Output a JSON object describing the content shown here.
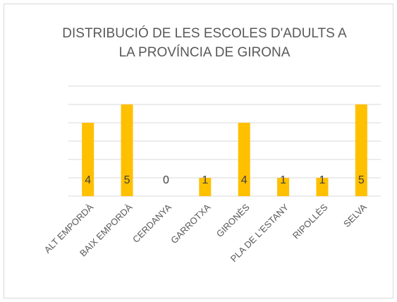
{
  "chart_data": {
    "type": "bar",
    "title": [
      "DISTRIBUCIÓ DE LES ESCOLES D'ADULTS A",
      "LA PROVÍNCIA DE GIRONA"
    ],
    "categories": [
      "ALT EMPORDÀ",
      "BAIX EMPORDÀ",
      "CERDANYA",
      "GARROTXA",
      "GIRONÈS",
      "PLA DE L'ESTANY",
      "RIPOLLÈS",
      "SELVA"
    ],
    "values": [
      4,
      5,
      0,
      1,
      4,
      1,
      1,
      5
    ],
    "color": "#ffc000",
    "ylim": [
      0,
      6
    ],
    "yticks": [
      0,
      1,
      2,
      3,
      4,
      5,
      6
    ],
    "grid": true
  }
}
